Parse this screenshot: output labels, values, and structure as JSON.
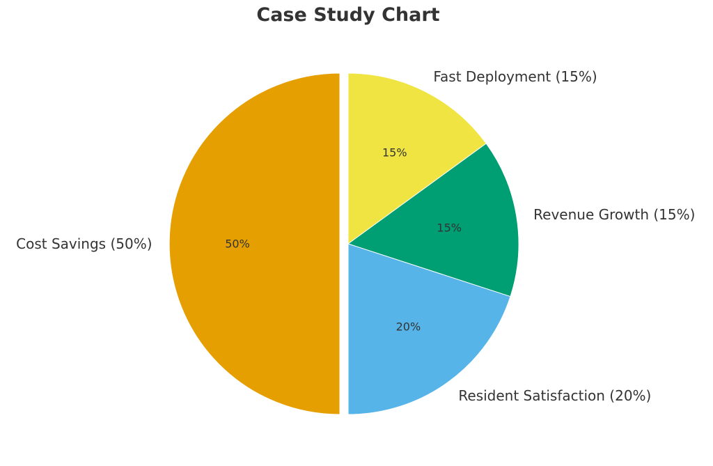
{
  "chart_data": {
    "type": "pie",
    "title": "Case Study Chart",
    "start_angle_deg": 90,
    "direction": "clockwise",
    "exploded": [
      "Cost Savings"
    ],
    "slices": [
      {
        "label": "Fast Deployment",
        "outer_label": "Fast Deployment (15%)",
        "value": 15,
        "pct_label": "15%",
        "color": "#F0E442"
      },
      {
        "label": "Revenue Growth",
        "outer_label": "Revenue Growth (15%)",
        "value": 15,
        "pct_label": "15%",
        "color": "#009E73"
      },
      {
        "label": "Resident Satisfaction",
        "outer_label": "Resident Satisfaction (20%)",
        "value": 20,
        "pct_label": "20%",
        "color": "#56B4E9"
      },
      {
        "label": "Cost Savings",
        "outer_label": "Cost Savings (50%)",
        "value": 50,
        "pct_label": "50%",
        "color": "#E69F00"
      }
    ]
  }
}
